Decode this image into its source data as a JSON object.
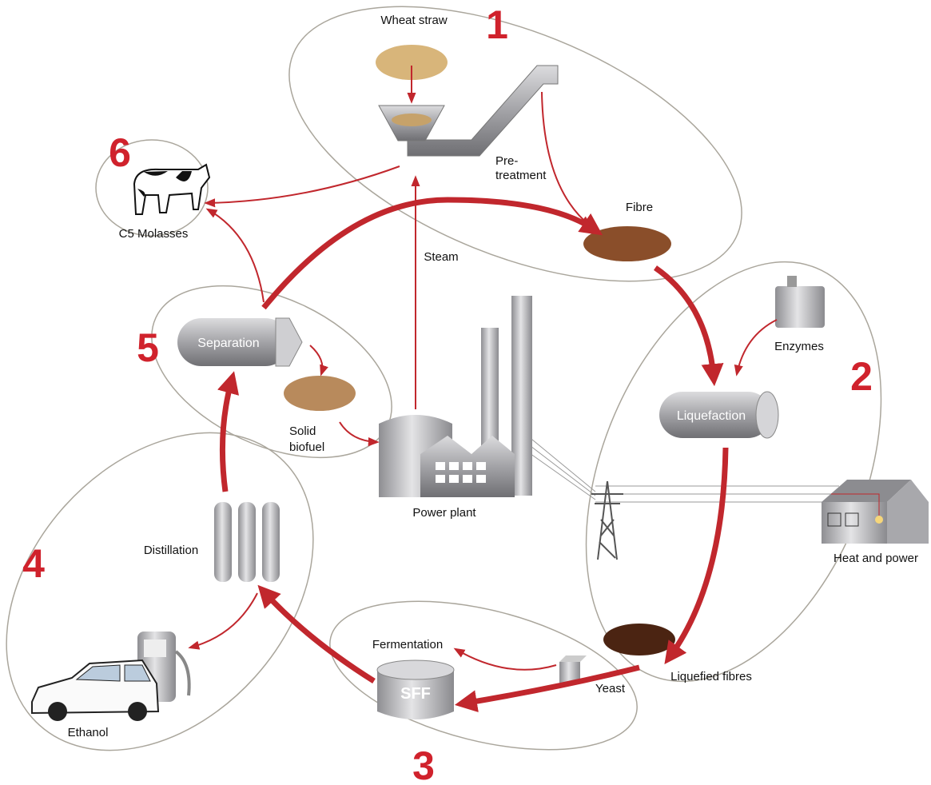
{
  "stage_numbers": [
    "1",
    "2",
    "3",
    "4",
    "5",
    "6"
  ],
  "labels": {
    "wheat_straw": "Wheat straw",
    "pretreatment": [
      "Pre-",
      "treatment"
    ],
    "c5_molasses": "C5 Molasses",
    "fibre": "Fibre",
    "steam": "Steam",
    "enzymes": "Enzymes",
    "liquefaction": "Liquefaction",
    "separation": "Separation",
    "solid_biofuel": [
      "Solid",
      "biofuel"
    ],
    "power_plant": "Power plant",
    "heat_and_power": "Heat and power",
    "distillation": "Distillation",
    "ethanol": "Ethanol",
    "fermentation": "Fermentation",
    "sff": "SFF",
    "yeast": "Yeast",
    "liquefied_fibres": "Liquefied fibres"
  }
}
